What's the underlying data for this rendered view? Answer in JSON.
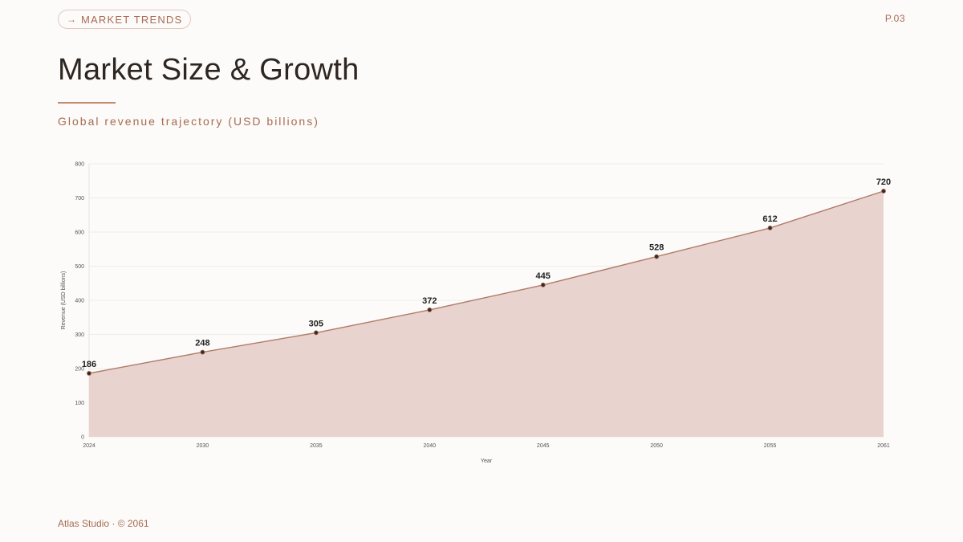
{
  "header": {
    "tag_arrow": "→",
    "tag_label": "MARKET TRENDS",
    "page_number": "P.03"
  },
  "slide": {
    "title": "Market Size & Growth",
    "subtitle": "Global revenue trajectory (USD billions)"
  },
  "footer": {
    "text": "Atlas Studio · © 2061"
  },
  "colors": {
    "accent": "#a86a52",
    "line": "#b07a68",
    "fill": "#e8d3cf",
    "point": "#3a2a22"
  },
  "chart_data": {
    "type": "area",
    "x": [
      "2024",
      "2030",
      "2035",
      "2040",
      "2045",
      "2050",
      "2055",
      "2061"
    ],
    "series": [
      {
        "values": [
          186,
          248,
          305,
          372,
          445,
          528,
          612,
          720
        ]
      }
    ],
    "xlabel": "Year",
    "ylabel": "Revenue (USD billions)",
    "ylim": [
      0,
      800
    ],
    "yticks": [
      0,
      100,
      200,
      300,
      400,
      500,
      600,
      700,
      800
    ],
    "grid": true,
    "data_labels": true
  }
}
